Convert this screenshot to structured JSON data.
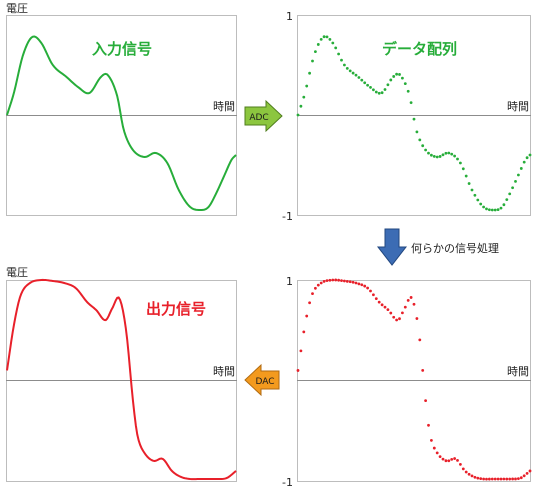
{
  "panels": {
    "input": {
      "ylabel": "電圧",
      "xlabel": "時間",
      "title": "入力信号"
    },
    "sampled": {
      "ytick_top": "1",
      "ytick_bottom": "-1",
      "xlabel": "時間",
      "title": "データ配列"
    },
    "output": {
      "ylabel": "電圧",
      "xlabel": "時間",
      "title": "出力信号"
    },
    "processed": {
      "ytick_top": "1",
      "ytick_bottom": "-1",
      "xlabel": "時間"
    }
  },
  "arrows": {
    "adc": {
      "label": "ADC",
      "color": "#8cc63f"
    },
    "process": {
      "label": "何らかの信号処理",
      "color": "#3c6cb4"
    },
    "dac": {
      "label": "DAC",
      "color": "#f39a1e"
    }
  },
  "colors": {
    "input": "#27ad3a",
    "output": "#e8202a"
  },
  "chart_data": [
    {
      "type": "line",
      "ylim": [
        -1,
        1
      ],
      "x": [
        0,
        0.03,
        0.07,
        0.11,
        0.15,
        0.2,
        0.26,
        0.31,
        0.36,
        0.41,
        0.44,
        0.48,
        0.51,
        0.55,
        0.6,
        0.65,
        0.7,
        0.75,
        0.8,
        0.85,
        0.88,
        0.91,
        0.95,
        0.98,
        1
      ],
      "y": [
        0,
        0.22,
        0.6,
        0.78,
        0.72,
        0.5,
        0.38,
        0.28,
        0.22,
        0.38,
        0.4,
        0.2,
        -0.15,
        -0.35,
        -0.42,
        -0.38,
        -0.48,
        -0.75,
        -0.92,
        -0.95,
        -0.92,
        -0.8,
        -0.6,
        -0.45,
        -0.4
      ]
    },
    {
      "type": "scatter",
      "ylim": [
        -1,
        1
      ],
      "x": [
        0,
        0.03,
        0.07,
        0.11,
        0.15,
        0.2,
        0.26,
        0.31,
        0.36,
        0.41,
        0.44,
        0.48,
        0.51,
        0.55,
        0.6,
        0.65,
        0.7,
        0.75,
        0.8,
        0.85,
        0.88,
        0.91,
        0.95,
        0.98,
        1
      ],
      "y": [
        0,
        0.22,
        0.6,
        0.78,
        0.72,
        0.5,
        0.38,
        0.28,
        0.22,
        0.38,
        0.4,
        0.2,
        -0.15,
        -0.35,
        -0.42,
        -0.38,
        -0.48,
        -0.75,
        -0.92,
        -0.95,
        -0.92,
        -0.8,
        -0.6,
        -0.45,
        -0.4
      ]
    },
    {
      "type": "scatter",
      "ylim": [
        -1,
        1
      ],
      "x": [
        0,
        0.03,
        0.06,
        0.1,
        0.15,
        0.2,
        0.25,
        0.3,
        0.35,
        0.39,
        0.43,
        0.46,
        0.49,
        0.52,
        0.55,
        0.57,
        0.6,
        0.64,
        0.68,
        0.72,
        0.76,
        0.8,
        0.84,
        0.88,
        0.92,
        0.96,
        1
      ],
      "y": [
        0.1,
        0.55,
        0.85,
        0.97,
        1.0,
        0.99,
        0.97,
        0.92,
        0.78,
        0.7,
        0.6,
        0.72,
        0.82,
        0.5,
        -0.2,
        -0.55,
        -0.72,
        -0.8,
        -0.78,
        -0.9,
        -0.96,
        -0.98,
        -0.98,
        -0.98,
        -0.98,
        -0.97,
        -0.9
      ]
    },
    {
      "type": "line",
      "ylim": [
        -1,
        1
      ],
      "x": [
        0,
        0.03,
        0.06,
        0.1,
        0.15,
        0.2,
        0.25,
        0.3,
        0.35,
        0.39,
        0.43,
        0.46,
        0.49,
        0.52,
        0.55,
        0.57,
        0.6,
        0.64,
        0.68,
        0.72,
        0.76,
        0.8,
        0.84,
        0.88,
        0.92,
        0.96,
        1
      ],
      "y": [
        0.1,
        0.55,
        0.85,
        0.97,
        1.0,
        0.99,
        0.97,
        0.92,
        0.78,
        0.7,
        0.6,
        0.72,
        0.82,
        0.5,
        -0.2,
        -0.55,
        -0.72,
        -0.8,
        -0.78,
        -0.9,
        -0.96,
        -0.98,
        -0.98,
        -0.98,
        -0.98,
        -0.97,
        -0.9
      ]
    }
  ]
}
